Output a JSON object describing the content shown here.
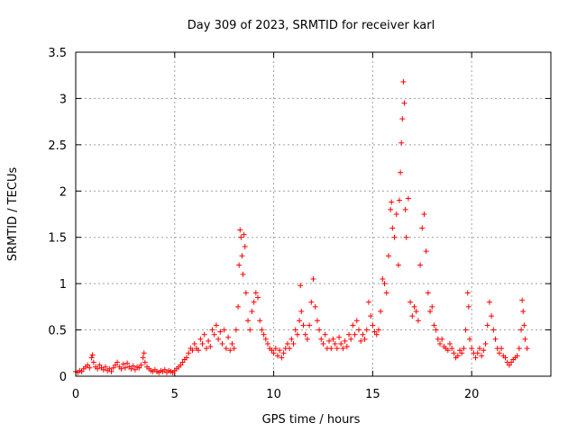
{
  "chart_data": {
    "type": "scatter",
    "title": "Day 309 of 2023, SRMTID for receiver karl",
    "xlabel": "GPS time / hours",
    "ylabel": "SRMTID / TECUs",
    "xlim": [
      0,
      24
    ],
    "ylim": [
      0,
      3.5
    ],
    "x_ticks": [
      0,
      5,
      10,
      15,
      20
    ],
    "x_tick_labels": [
      "0",
      "5",
      "10",
      "15",
      "20"
    ],
    "y_ticks": [
      0,
      0.5,
      1,
      1.5,
      2,
      2.5,
      3,
      3.5
    ],
    "y_tick_labels": [
      "0",
      "0.5",
      "1",
      "1.5",
      "2",
      "2.5",
      "3",
      "3.5"
    ],
    "grid": true,
    "marker": "+",
    "series": [
      {
        "name": "SRMTID",
        "color": "#ff0000",
        "points": [
          [
            0.0,
            0.05
          ],
          [
            0.1,
            0.04
          ],
          [
            0.2,
            0.06
          ],
          [
            0.3,
            0.05
          ],
          [
            0.4,
            0.08
          ],
          [
            0.5,
            0.1
          ],
          [
            0.6,
            0.12
          ],
          [
            0.7,
            0.09
          ],
          [
            0.8,
            0.2
          ],
          [
            0.85,
            0.23
          ],
          [
            0.9,
            0.15
          ],
          [
            1.0,
            0.1
          ],
          [
            1.1,
            0.08
          ],
          [
            1.2,
            0.12
          ],
          [
            1.3,
            0.09
          ],
          [
            1.4,
            0.07
          ],
          [
            1.5,
            0.1
          ],
          [
            1.6,
            0.06
          ],
          [
            1.7,
            0.08
          ],
          [
            1.8,
            0.05
          ],
          [
            1.9,
            0.09
          ],
          [
            2.0,
            0.12
          ],
          [
            2.1,
            0.15
          ],
          [
            2.2,
            0.1
          ],
          [
            2.3,
            0.08
          ],
          [
            2.4,
            0.13
          ],
          [
            2.5,
            0.09
          ],
          [
            2.6,
            0.14
          ],
          [
            2.7,
            0.1
          ],
          [
            2.8,
            0.08
          ],
          [
            2.9,
            0.11
          ],
          [
            3.0,
            0.07
          ],
          [
            3.1,
            0.1
          ],
          [
            3.2,
            0.09
          ],
          [
            3.3,
            0.12
          ],
          [
            3.4,
            0.2
          ],
          [
            3.45,
            0.25
          ],
          [
            3.5,
            0.15
          ],
          [
            3.6,
            0.1
          ],
          [
            3.7,
            0.08
          ],
          [
            3.8,
            0.06
          ],
          [
            3.9,
            0.05
          ],
          [
            4.0,
            0.07
          ],
          [
            4.1,
            0.05
          ],
          [
            4.2,
            0.04
          ],
          [
            4.3,
            0.06
          ],
          [
            4.4,
            0.05
          ],
          [
            4.5,
            0.07
          ],
          [
            4.6,
            0.04
          ],
          [
            4.7,
            0.06
          ],
          [
            4.8,
            0.05
          ],
          [
            4.9,
            0.04
          ],
          [
            5.0,
            0.06
          ],
          [
            5.1,
            0.08
          ],
          [
            5.2,
            0.1
          ],
          [
            5.3,
            0.12
          ],
          [
            5.4,
            0.15
          ],
          [
            5.5,
            0.18
          ],
          [
            5.6,
            0.2
          ],
          [
            5.7,
            0.25
          ],
          [
            5.8,
            0.3
          ],
          [
            5.9,
            0.28
          ],
          [
            6.0,
            0.35
          ],
          [
            6.1,
            0.3
          ],
          [
            6.2,
            0.28
          ],
          [
            6.3,
            0.4
          ],
          [
            6.4,
            0.35
          ],
          [
            6.5,
            0.45
          ],
          [
            6.6,
            0.3
          ],
          [
            6.7,
            0.38
          ],
          [
            6.8,
            0.32
          ],
          [
            6.9,
            0.5
          ],
          [
            7.0,
            0.45
          ],
          [
            7.1,
            0.55
          ],
          [
            7.2,
            0.4
          ],
          [
            7.3,
            0.48
          ],
          [
            7.4,
            0.35
          ],
          [
            7.5,
            0.5
          ],
          [
            7.6,
            0.3
          ],
          [
            7.7,
            0.42
          ],
          [
            7.8,
            0.28
          ],
          [
            7.9,
            0.35
          ],
          [
            8.0,
            0.3
          ],
          [
            8.1,
            0.5
          ],
          [
            8.2,
            0.75
          ],
          [
            8.25,
            1.2
          ],
          [
            8.3,
            1.58
          ],
          [
            8.35,
            1.5
          ],
          [
            8.4,
            1.3
          ],
          [
            8.45,
            1.1
          ],
          [
            8.5,
            1.53
          ],
          [
            8.55,
            1.4
          ],
          [
            8.6,
            0.9
          ],
          [
            8.7,
            0.6
          ],
          [
            8.8,
            0.5
          ],
          [
            8.9,
            0.7
          ],
          [
            9.0,
            0.8
          ],
          [
            9.1,
            0.9
          ],
          [
            9.2,
            0.85
          ],
          [
            9.3,
            0.6
          ],
          [
            9.4,
            0.5
          ],
          [
            9.5,
            0.45
          ],
          [
            9.6,
            0.4
          ],
          [
            9.7,
            0.35
          ],
          [
            9.8,
            0.3
          ],
          [
            9.9,
            0.28
          ],
          [
            10.0,
            0.25
          ],
          [
            10.1,
            0.3
          ],
          [
            10.2,
            0.22
          ],
          [
            10.3,
            0.28
          ],
          [
            10.4,
            0.2
          ],
          [
            10.5,
            0.25
          ],
          [
            10.6,
            0.3
          ],
          [
            10.7,
            0.35
          ],
          [
            10.8,
            0.3
          ],
          [
            10.9,
            0.4
          ],
          [
            11.0,
            0.35
          ],
          [
            11.1,
            0.5
          ],
          [
            11.2,
            0.45
          ],
          [
            11.3,
            0.6
          ],
          [
            11.35,
            0.98
          ],
          [
            11.4,
            0.7
          ],
          [
            11.5,
            0.55
          ],
          [
            11.6,
            0.45
          ],
          [
            11.7,
            0.4
          ],
          [
            11.8,
            0.55
          ],
          [
            11.9,
            0.8
          ],
          [
            12.0,
            1.05
          ],
          [
            12.1,
            0.75
          ],
          [
            12.2,
            0.6
          ],
          [
            12.3,
            0.5
          ],
          [
            12.4,
            0.4
          ],
          [
            12.5,
            0.35
          ],
          [
            12.6,
            0.45
          ],
          [
            12.7,
            0.3
          ],
          [
            12.8,
            0.38
          ],
          [
            12.9,
            0.3
          ],
          [
            13.0,
            0.4
          ],
          [
            13.1,
            0.35
          ],
          [
            13.2,
            0.3
          ],
          [
            13.3,
            0.42
          ],
          [
            13.4,
            0.35
          ],
          [
            13.5,
            0.3
          ],
          [
            13.6,
            0.38
          ],
          [
            13.7,
            0.32
          ],
          [
            13.8,
            0.45
          ],
          [
            13.9,
            0.4
          ],
          [
            14.0,
            0.55
          ],
          [
            14.1,
            0.45
          ],
          [
            14.2,
            0.6
          ],
          [
            14.3,
            0.5
          ],
          [
            14.4,
            0.38
          ],
          [
            14.5,
            0.45
          ],
          [
            14.6,
            0.4
          ],
          [
            14.7,
            0.5
          ],
          [
            14.8,
            0.8
          ],
          [
            14.9,
            0.65
          ],
          [
            15.0,
            0.55
          ],
          [
            15.1,
            0.48
          ],
          [
            15.2,
            0.45
          ],
          [
            15.3,
            0.5
          ],
          [
            15.4,
            0.7
          ],
          [
            15.5,
            1.05
          ],
          [
            15.6,
            1.0
          ],
          [
            15.7,
            0.9
          ],
          [
            15.8,
            1.3
          ],
          [
            15.9,
            1.8
          ],
          [
            15.95,
            1.88
          ],
          [
            16.0,
            1.6
          ],
          [
            16.1,
            1.5
          ],
          [
            16.2,
            1.75
          ],
          [
            16.3,
            1.2
          ],
          [
            16.35,
            1.9
          ],
          [
            16.4,
            2.2
          ],
          [
            16.45,
            2.52
          ],
          [
            16.5,
            2.78
          ],
          [
            16.55,
            3.18
          ],
          [
            16.6,
            2.95
          ],
          [
            16.65,
            1.8
          ],
          [
            16.7,
            1.5
          ],
          [
            16.8,
            1.92
          ],
          [
            16.9,
            0.8
          ],
          [
            17.0,
            0.65
          ],
          [
            17.1,
            0.75
          ],
          [
            17.2,
            0.7
          ],
          [
            17.3,
            0.6
          ],
          [
            17.4,
            1.2
          ],
          [
            17.5,
            1.6
          ],
          [
            17.6,
            1.75
          ],
          [
            17.7,
            1.35
          ],
          [
            17.8,
            0.9
          ],
          [
            17.9,
            0.7
          ],
          [
            18.0,
            0.75
          ],
          [
            18.1,
            0.55
          ],
          [
            18.2,
            0.5
          ],
          [
            18.3,
            0.4
          ],
          [
            18.4,
            0.35
          ],
          [
            18.5,
            0.4
          ],
          [
            18.6,
            0.32
          ],
          [
            18.7,
            0.3
          ],
          [
            18.8,
            0.28
          ],
          [
            18.9,
            0.35
          ],
          [
            19.0,
            0.3
          ],
          [
            19.1,
            0.25
          ],
          [
            19.2,
            0.2
          ],
          [
            19.3,
            0.22
          ],
          [
            19.4,
            0.28
          ],
          [
            19.5,
            0.25
          ],
          [
            19.6,
            0.3
          ],
          [
            19.7,
            0.5
          ],
          [
            19.8,
            0.9
          ],
          [
            19.85,
            0.75
          ],
          [
            19.9,
            0.4
          ],
          [
            20.0,
            0.3
          ],
          [
            20.1,
            0.25
          ],
          [
            20.2,
            0.2
          ],
          [
            20.3,
            0.25
          ],
          [
            20.4,
            0.3
          ],
          [
            20.5,
            0.22
          ],
          [
            20.6,
            0.28
          ],
          [
            20.7,
            0.35
          ],
          [
            20.8,
            0.55
          ],
          [
            20.9,
            0.8
          ],
          [
            21.0,
            0.65
          ],
          [
            21.1,
            0.5
          ],
          [
            21.2,
            0.4
          ],
          [
            21.3,
            0.3
          ],
          [
            21.4,
            0.25
          ],
          [
            21.5,
            0.3
          ],
          [
            21.6,
            0.22
          ],
          [
            21.7,
            0.2
          ],
          [
            21.8,
            0.15
          ],
          [
            21.9,
            0.12
          ],
          [
            22.0,
            0.15
          ],
          [
            22.1,
            0.18
          ],
          [
            22.2,
            0.2
          ],
          [
            22.3,
            0.22
          ],
          [
            22.4,
            0.3
          ],
          [
            22.5,
            0.5
          ],
          [
            22.55,
            0.82
          ],
          [
            22.6,
            0.7
          ],
          [
            22.65,
            0.55
          ],
          [
            22.7,
            0.4
          ],
          [
            22.8,
            0.3
          ]
        ]
      }
    ]
  }
}
